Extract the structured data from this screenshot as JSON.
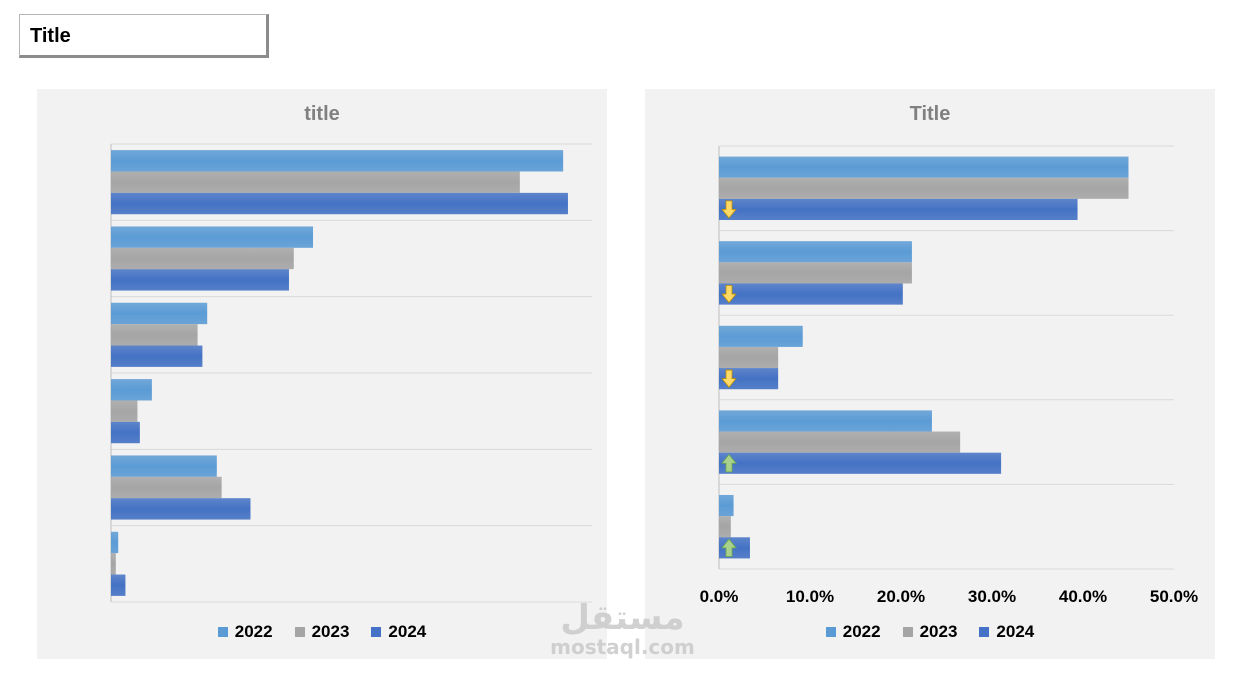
{
  "header": {
    "title": "Title"
  },
  "colors": {
    "s2022": "#5b9bd5",
    "s2023": "#a5a5a5",
    "s2024": "#4472c4",
    "arrow_down": "#ffd966",
    "arrow_up": "#a9d18e"
  },
  "watermark": {
    "arabic": "مستقل",
    "latin": "mostaql.com"
  },
  "chart_data": [
    {
      "type": "bar",
      "orientation": "horizontal",
      "title": "title",
      "categories": [
        "",
        "",
        "",
        "",
        "",
        ""
      ],
      "series": [
        {
          "name": "2022",
          "values": [
            94,
            42,
            20,
            8.5,
            22,
            1.5
          ]
        },
        {
          "name": "2023",
          "values": [
            85,
            38,
            18,
            5.5,
            23,
            1
          ]
        },
        {
          "name": "2024",
          "values": [
            95,
            37,
            19,
            6,
            29,
            3
          ]
        }
      ],
      "xlim": [
        0,
        100
      ],
      "grid": true,
      "legend": "bottom"
    },
    {
      "type": "bar",
      "orientation": "horizontal",
      "title": "Title",
      "categories": [
        "",
        "",
        "",
        "",
        ""
      ],
      "series": [
        {
          "name": "2022",
          "values": [
            0.45,
            0.212,
            0.092,
            0.234,
            0.016
          ]
        },
        {
          "name": "2023",
          "values": [
            0.45,
            0.212,
            0.065,
            0.265,
            0.013
          ]
        },
        {
          "name": "2024",
          "values": [
            0.394,
            0.202,
            0.065,
            0.31,
            0.034
          ]
        }
      ],
      "trend_markers": [
        "down",
        "down",
        "down",
        "up",
        "up"
      ],
      "xlim": [
        0,
        0.5
      ],
      "xticks": [
        "0.0%",
        "10.0%",
        "20.0%",
        "30.0%",
        "40.0%",
        "50.0%"
      ],
      "grid": true,
      "legend": "bottom"
    }
  ]
}
